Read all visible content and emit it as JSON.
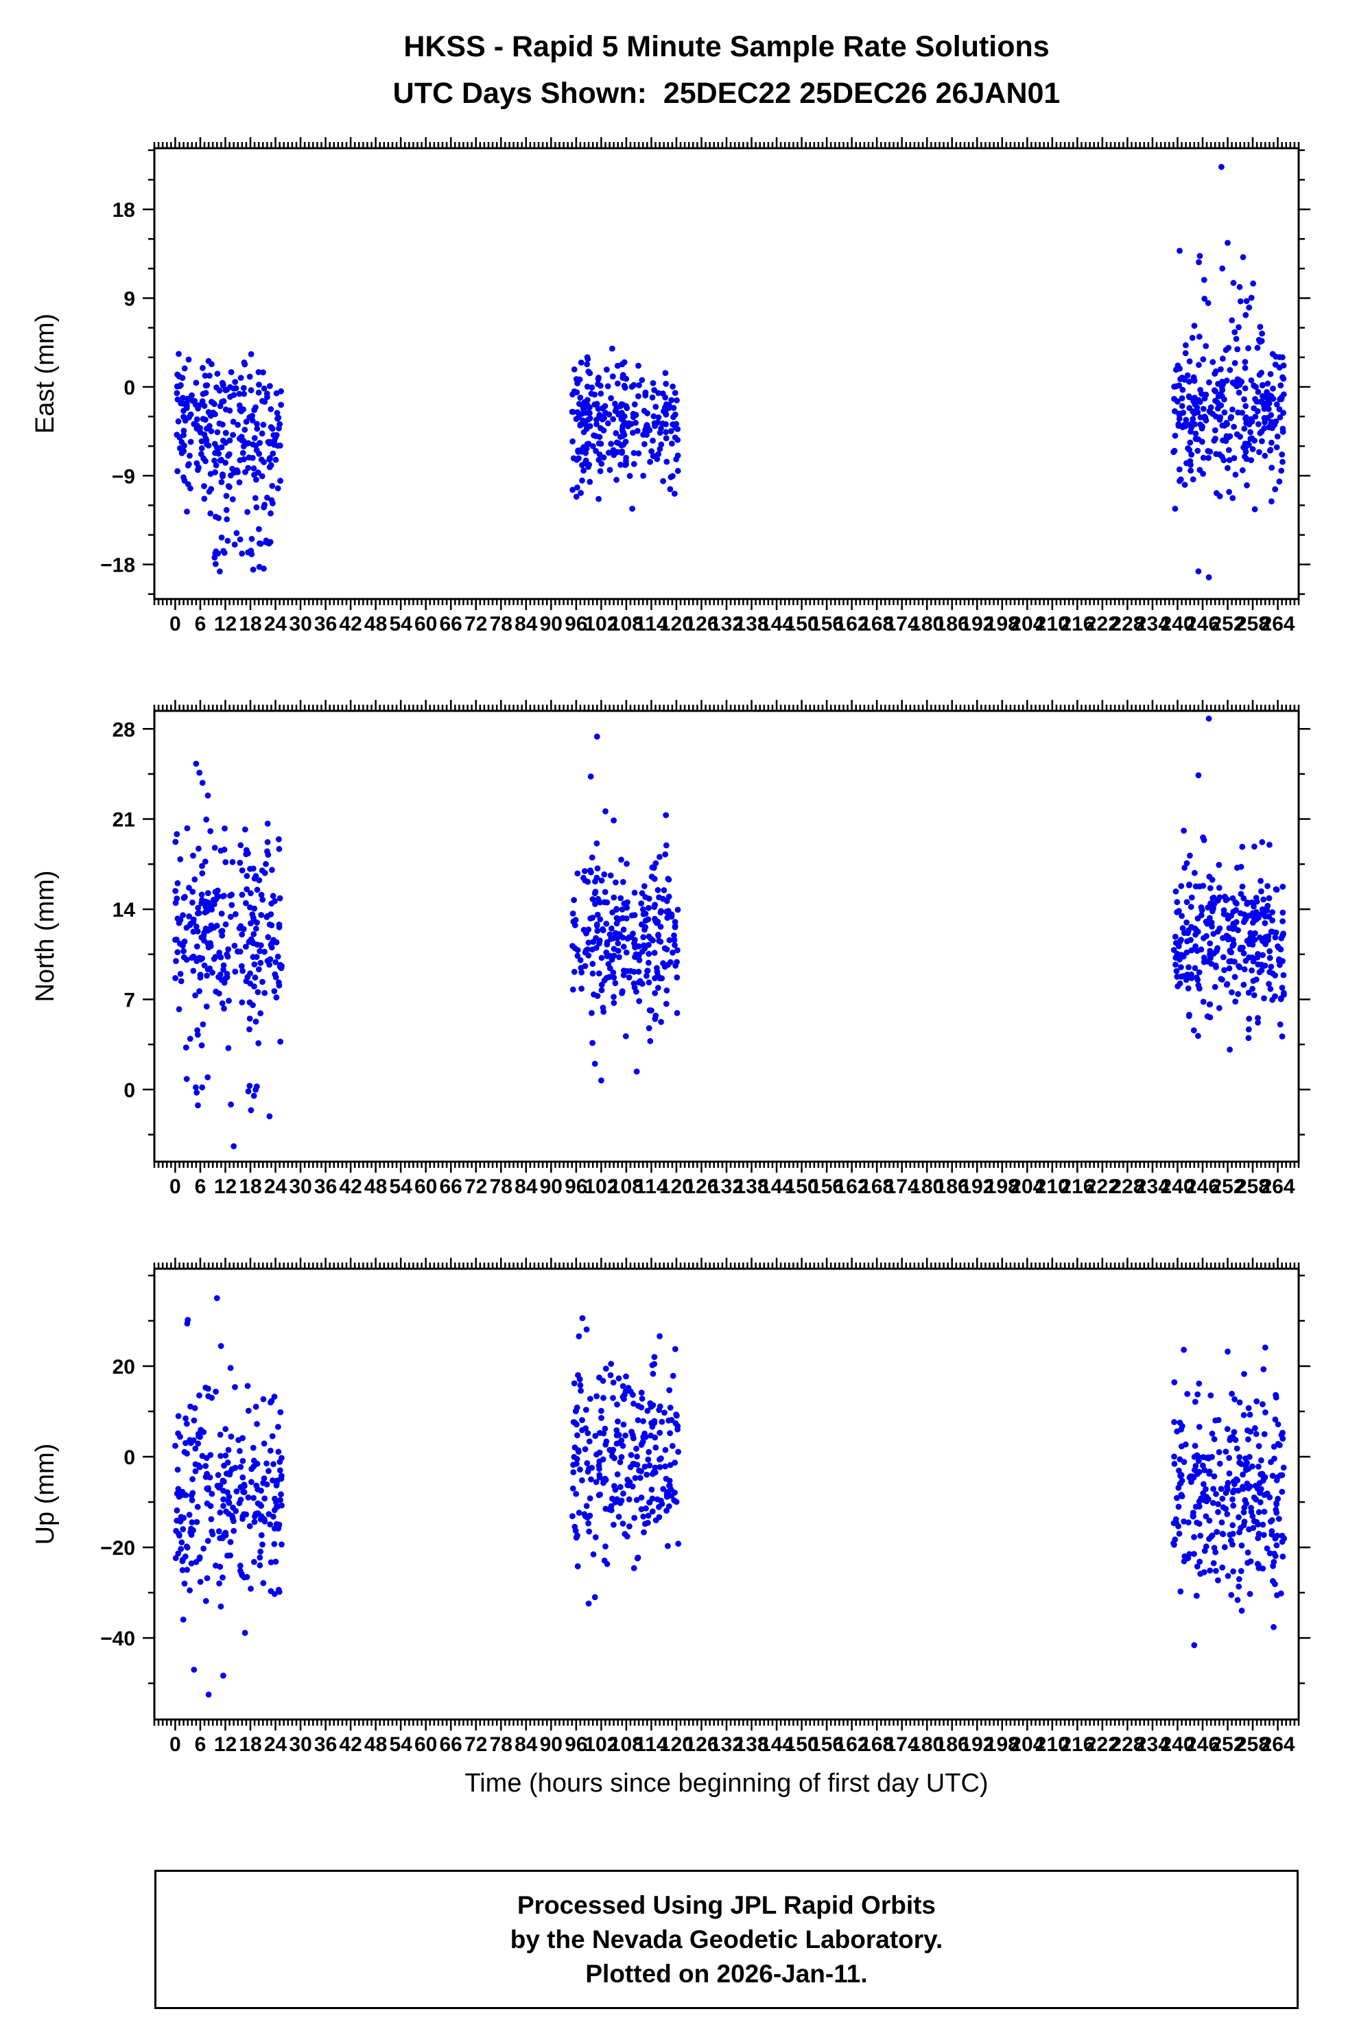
{
  "title": {
    "line1": "HKSS - Rapid 5 Minute Sample Rate Solutions",
    "line2": "UTC Days Shown:  25DEC22 25DEC26 26JAN01"
  },
  "x_axis": {
    "label": "Time (hours since beginning of first day UTC)",
    "lim": [
      -5,
      269
    ],
    "ticks": [
      0,
      6,
      12,
      18,
      24,
      30,
      36,
      42,
      48,
      54,
      60,
      66,
      72,
      78,
      84,
      90,
      96,
      102,
      108,
      114,
      120,
      126,
      132,
      138,
      144,
      150,
      156,
      162,
      168,
      174,
      180,
      186,
      192,
      198,
      204,
      210,
      216,
      222,
      228,
      234,
      240,
      246,
      252,
      258,
      264
    ],
    "major_tick_step": 6,
    "minor_tick_step": 1
  },
  "footer": {
    "line1": "Processed Using JPL Rapid Orbits",
    "line2": "by the Nevada Geodetic Laboratory.",
    "line3": "Plotted on 2026-Jan-11."
  },
  "style": {
    "dot_color": "#0000ee",
    "axis_color": "#000000",
    "background": "#ffffff",
    "text_color": "#000000"
  },
  "chart_data": [
    {
      "id": "east",
      "type": "scatter",
      "ylabel": "East (mm)",
      "ylim": [
        -21.5,
        24.2
      ],
      "yticks": [
        -18,
        -9,
        0,
        9,
        18
      ],
      "y_minor_step": 3,
      "clusters": [
        {
          "x_range": [
            0,
            25.5
          ],
          "count": 260,
          "y_mean": -4,
          "y_std": 4.2,
          "y_clip": [
            -13.5,
            6.3
          ],
          "seed": 101
        },
        {
          "x_range": [
            8,
            23
          ],
          "count": 34,
          "y_mean": -15.5,
          "y_std": 2.2,
          "y_clip": [
            -20.5,
            -11
          ],
          "seed": 102
        },
        {
          "x_range": [
            95,
            120.5
          ],
          "count": 265,
          "y_mean": -4,
          "y_std": 3.2,
          "y_clip": [
            -12.6,
            4.6
          ],
          "seed": 103
        },
        {
          "x_range": [
            239,
            265.5
          ],
          "count": 300,
          "y_mean": -2.5,
          "y_std": 3.8,
          "y_clip": [
            -12.8,
            8.2
          ],
          "seed": 104
        },
        {
          "x_range": [
            243,
            259
          ],
          "count": 14,
          "y_mean": 9.5,
          "y_std": 2.2,
          "y_clip": [
            6,
            14.8
          ],
          "seed": 105
        }
      ],
      "outliers": [
        [
          250.5,
          22.3
        ],
        [
          245,
          -18.7
        ],
        [
          247.5,
          -19.3
        ],
        [
          258.5,
          -12.4
        ],
        [
          262.5,
          -11.6
        ],
        [
          240.5,
          13.8
        ],
        [
          252,
          14.6
        ]
      ]
    },
    {
      "id": "north",
      "type": "scatter",
      "ylabel": "North (mm)",
      "ylim": [
        -5.6,
        29.4
      ],
      "yticks": [
        0,
        7,
        14,
        21,
        28
      ],
      "y_minor_step": 3.5,
      "clusters": [
        {
          "x_range": [
            0,
            25.5
          ],
          "count": 255,
          "y_mean": 12,
          "y_std": 3.8,
          "y_clip": [
            3.2,
            21.2
          ],
          "seed": 201
        },
        {
          "x_range": [
            3.5,
            9.5
          ],
          "count": 10,
          "y_mean": 18,
          "y_std": 3.0,
          "y_clip": [
            14,
            25.4
          ],
          "seed": 202
        },
        {
          "x_range": [
            1.5,
            23
          ],
          "count": 14,
          "y_mean": -0.3,
          "y_std": 1.3,
          "y_clip": [
            -3,
            2.2
          ],
          "seed": 203
        },
        {
          "x_range": [
            95,
            120.5
          ],
          "count": 265,
          "y_mean": 11.5,
          "y_std": 3.3,
          "y_clip": [
            3.4,
            19.2
          ],
          "seed": 204
        },
        {
          "x_range": [
            239,
            265.5
          ],
          "count": 300,
          "y_mean": 11.5,
          "y_std": 3.0,
          "y_clip": [
            3.4,
            19.6
          ],
          "seed": 205
        }
      ],
      "outliers": [
        [
          5,
          25.3
        ],
        [
          5.8,
          24.6
        ],
        [
          14,
          -4.4
        ],
        [
          101,
          27.4
        ],
        [
          99.5,
          24.3
        ],
        [
          103,
          21.6
        ],
        [
          105,
          20.9
        ],
        [
          100.5,
          2.0
        ],
        [
          102,
          0.7
        ],
        [
          110.5,
          1.4
        ],
        [
          117.5,
          21.3
        ],
        [
          247.5,
          28.8
        ],
        [
          245,
          24.4
        ],
        [
          252.5,
          3.1
        ],
        [
          257,
          4.0
        ],
        [
          241.5,
          20.1
        ],
        [
          262,
          19.0
        ]
      ]
    },
    {
      "id": "up",
      "type": "scatter",
      "ylabel": "Up (mm)",
      "ylim": [
        -58,
        41.5
      ],
      "yticks": [
        -40,
        -20,
        0,
        20
      ],
      "y_minor_step": 10,
      "clusters": [
        {
          "x_range": [
            0,
            25.5
          ],
          "count": 265,
          "y_mean": -7,
          "y_std": 13,
          "y_clip": [
            -44,
            32
          ],
          "seed": 301
        },
        {
          "x_range": [
            95,
            120.5
          ],
          "count": 265,
          "y_mean": -1,
          "y_std": 11,
          "y_clip": [
            -29.5,
            27
          ],
          "seed": 302
        },
        {
          "x_range": [
            239,
            265.5
          ],
          "count": 300,
          "y_mean": -8,
          "y_std": 11.5,
          "y_clip": [
            -35.5,
            23.5
          ],
          "seed": 303
        }
      ],
      "outliers": [
        [
          10,
          35
        ],
        [
          4.5,
          -47
        ],
        [
          8,
          -52.5
        ],
        [
          11.5,
          -48.3
        ],
        [
          3,
          30.2
        ],
        [
          97.5,
          30.6
        ],
        [
          98.5,
          28.1
        ],
        [
          116,
          26.6
        ],
        [
          99,
          -32.4
        ],
        [
          100.5,
          -31
        ],
        [
          241.5,
          23.6
        ],
        [
          252,
          23.2
        ],
        [
          261,
          24.1
        ],
        [
          244,
          -41.6
        ],
        [
          263,
          -37.6
        ]
      ]
    }
  ]
}
